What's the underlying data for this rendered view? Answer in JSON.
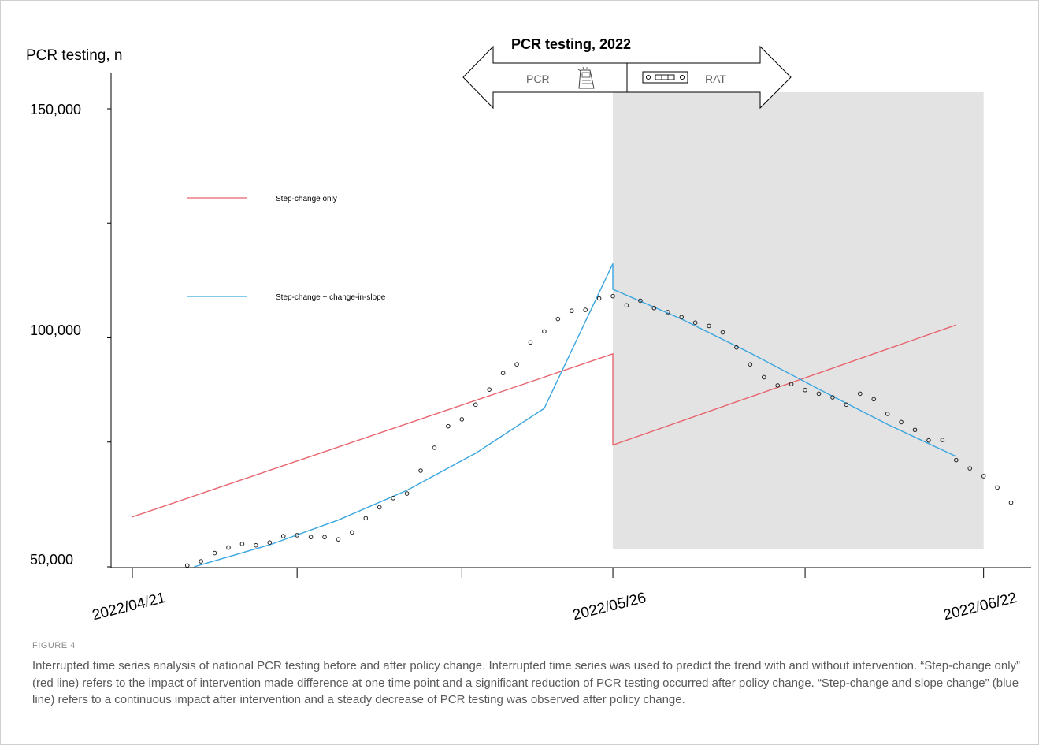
{
  "figure": {
    "label": "FIGURE 4",
    "caption": "Interrupted time series analysis of national PCR testing before and after policy change. Interrupted time series was used to predict the trend with and without intervention. “Step-change only” (red line) refers to the impact of intervention made difference at one time point and a significant reduction of PCR testing occurred after policy change. “Step-change and slope change” (blue line) refers to a continuous impact after intervention and a steady decrease of PCR testing was observed after policy change."
  },
  "chart_data": {
    "type": "line",
    "ylabel": "PCR testing, n",
    "ylim": [
      50000,
      150000
    ],
    "yticks": [
      {
        "value": 50000,
        "label": "50,000"
      },
      {
        "value": 100000,
        "label": "100,000"
      },
      {
        "value": 150000,
        "label": "150,000"
      }
    ],
    "xticks": [
      {
        "day": 0,
        "label": "2022/04/21"
      },
      {
        "day": 35,
        "label": "2022/05/26"
      },
      {
        "day": 62,
        "label": "2022/06/22"
      }
    ],
    "minor_xticks": [
      12,
      24,
      49
    ],
    "intervention_day": 35,
    "shaded_region": {
      "from_day": 35,
      "to_day": 62,
      "color": "#e3e3e3"
    },
    "banner": {
      "title": "PCR testing, 2022",
      "left_label": "PCR",
      "right_label": "RAT",
      "left_icon": "pcr-machine-icon",
      "right_icon": "rapid-antigen-test-icon"
    },
    "series": [
      {
        "name": "Step-change only",
        "color": "#e8646e",
        "points": [
          [
            0,
            60900
          ],
          [
            35,
            96500
          ],
          [
            35,
            76600
          ],
          [
            60,
            102800
          ]
        ]
      },
      {
        "name": "Step-change + change-in-slope",
        "color": "#3aa6e0",
        "points": [
          [
            4.5,
            50000
          ],
          [
            10,
            54800
          ],
          [
            15,
            60200
          ],
          [
            20,
            66700
          ],
          [
            25,
            74800
          ],
          [
            30,
            84600
          ],
          [
            35,
            116200
          ],
          [
            35,
            110600
          ],
          [
            40,
            104100
          ],
          [
            45,
            96700
          ],
          [
            50,
            88800
          ],
          [
            55,
            81100
          ],
          [
            60,
            74100
          ]
        ]
      },
      {
        "name": "Observed",
        "style": "scatter",
        "color": "#222222",
        "points": [
          [
            4,
            50300
          ],
          [
            5,
            51200
          ],
          [
            6,
            53000
          ],
          [
            7,
            54200
          ],
          [
            8,
            55000
          ],
          [
            9,
            54700
          ],
          [
            10,
            55300
          ],
          [
            11,
            56700
          ],
          [
            12,
            56900
          ],
          [
            13,
            56500
          ],
          [
            14,
            56500
          ],
          [
            15,
            56000
          ],
          [
            16,
            57500
          ],
          [
            17,
            60600
          ],
          [
            18,
            63000
          ],
          [
            19,
            65000
          ],
          [
            20,
            66000
          ],
          [
            21,
            71000
          ],
          [
            22,
            76000
          ],
          [
            23,
            80700
          ],
          [
            24,
            82200
          ],
          [
            25,
            85400
          ],
          [
            26,
            88700
          ],
          [
            27,
            92300
          ],
          [
            28,
            94200
          ],
          [
            29,
            99000
          ],
          [
            30,
            101400
          ],
          [
            31,
            104100
          ],
          [
            32,
            105900
          ],
          [
            33,
            106100
          ],
          [
            34,
            108600
          ],
          [
            35,
            109100
          ],
          [
            36,
            107100
          ],
          [
            37,
            108100
          ],
          [
            38,
            106500
          ],
          [
            39,
            105600
          ],
          [
            40,
            104500
          ],
          [
            41,
            103300
          ],
          [
            42,
            102600
          ],
          [
            43,
            101200
          ],
          [
            44,
            97900
          ],
          [
            45,
            94200
          ],
          [
            46,
            91400
          ],
          [
            47,
            89600
          ],
          [
            48,
            89900
          ],
          [
            49,
            88600
          ],
          [
            50,
            87800
          ],
          [
            51,
            87000
          ],
          [
            52,
            85400
          ],
          [
            53,
            87800
          ],
          [
            54,
            86600
          ],
          [
            55,
            83400
          ],
          [
            56,
            81600
          ],
          [
            57,
            79900
          ],
          [
            58,
            77600
          ],
          [
            59,
            77700
          ],
          [
            60,
            73300
          ],
          [
            61,
            71500
          ],
          [
            62,
            69800
          ],
          [
            63,
            67300
          ],
          [
            64,
            64000
          ]
        ]
      }
    ],
    "legend": {
      "placement": "upper-left",
      "entries": [
        "Step-change only",
        "Step-change + change-in-slope"
      ]
    }
  }
}
